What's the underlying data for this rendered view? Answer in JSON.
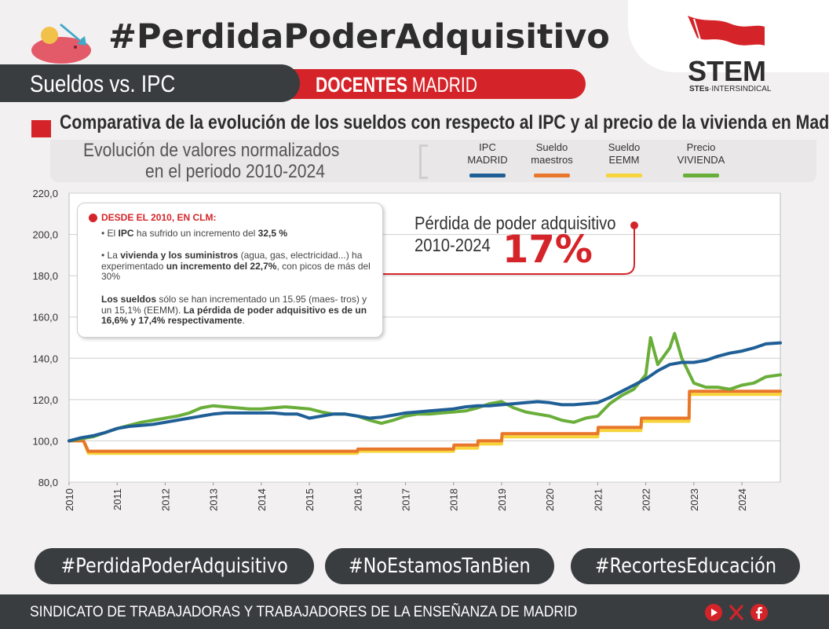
{
  "header": {
    "hashtag_title": "#PerdidaPoderAdquisitivo",
    "left_pill": "Sueldos vs. IPC",
    "right_pill_bold": "DOCENTES",
    "right_pill_light": "MADRID",
    "logo_text": "STEM",
    "logo_sub_bold": "STEs",
    "logo_sub_rest": "·INTERSINDICAL"
  },
  "subtitle": "Comparativa de la evolución de los sueldos con respecto al IPC y al precio de la vivienda en Madrid",
  "legend_panel": {
    "title_line1": "Evolución de valores normalizados",
    "title_line2": "en el periodo 2010-2024"
  },
  "annotation": {
    "heading": "DESDE EL 2010, EN CLM:",
    "p1_a": "• El ",
    "p1_b": "IPC",
    "p1_c": " ha sufrido un incremento del ",
    "p1_d": "32,5 %",
    "p2_a": "• La ",
    "p2_b": "vivienda y los suministros",
    "p2_c": " (agua, gas, electricidad...) ha experimentado ",
    "p2_d": "un incremento del 22,7%",
    "p2_e": ", con picos de más del 30%",
    "p3_a": "Los sueldos",
    "p3_b": " sólo se han incrementado un 15.95 (maes- tros) y un 15,1% (EEMM). ",
    "p3_c": "La pérdida de poder adquisitivo es de un 16,6% y 17,4% respectivamente",
    "p3_d": "."
  },
  "loss": {
    "label_line1": "Pérdida de poder adquisitivo",
    "label_line2": "2010-2024",
    "value": "17%"
  },
  "hashtags": [
    "#PerdidaPoderAdquisitivo",
    "#NoEstamosTanBien",
    "#RecortesEducación"
  ],
  "footer": {
    "text": "SINDICATO DE TRABAJADORAS Y TRABAJADORES DE LA ENSEÑANZA DE MADRID",
    "icons": [
      "youtube-icon",
      "x-icon",
      "facebook-icon"
    ]
  },
  "colors": {
    "brand_red": "#d52429",
    "dark": "#3a3d40",
    "ipc": "#1f5f96",
    "maestros": "#e8772c",
    "eemm": "#f6d43a",
    "vivienda": "#6aae3a"
  },
  "chart_data": {
    "type": "line",
    "ylim": [
      80,
      220
    ],
    "yticks": [
      "80,0",
      "100,0",
      "120,0",
      "140,0",
      "160,0",
      "180,0",
      "200,0",
      "220,0"
    ],
    "ytick_values": [
      80,
      100,
      120,
      140,
      160,
      180,
      200,
      220
    ],
    "xlim": [
      2010,
      2024.8
    ],
    "xticks": [
      "2010",
      "2011",
      "2012",
      "2013",
      "2014",
      "2015",
      "2016",
      "2017",
      "2018",
      "2019",
      "2020",
      "2021",
      "2022",
      "2023",
      "2024"
    ],
    "grid": true,
    "series": [
      {
        "name": "IPC MADRID",
        "legend_lines": [
          "IPC",
          "MADRID"
        ],
        "color": "#1f5f96",
        "x": [
          2010,
          2010.25,
          2010.5,
          2010.75,
          2011,
          2011.25,
          2011.5,
          2011.75,
          2012,
          2012.25,
          2012.5,
          2012.75,
          2013,
          2013.25,
          2013.5,
          2013.75,
          2014,
          2014.25,
          2014.5,
          2014.75,
          2015,
          2015.25,
          2015.5,
          2015.75,
          2016,
          2016.25,
          2016.5,
          2016.75,
          2017,
          2017.25,
          2017.5,
          2017.75,
          2018,
          2018.25,
          2018.5,
          2018.75,
          2019,
          2019.25,
          2019.5,
          2019.75,
          2020,
          2020.25,
          2020.5,
          2020.75,
          2021,
          2021.25,
          2021.5,
          2021.75,
          2022,
          2022.25,
          2022.5,
          2022.75,
          2023,
          2023.25,
          2023.5,
          2023.75,
          2024,
          2024.25,
          2024.5,
          2024.8
        ],
        "values": [
          100,
          101.5,
          102.5,
          104,
          106,
          107,
          107.5,
          108,
          109,
          110,
          111,
          112,
          113,
          113.5,
          113.5,
          113.5,
          113.5,
          113.5,
          113,
          113,
          111,
          112,
          113,
          113,
          112,
          111,
          111.5,
          112.5,
          113.5,
          114,
          114.5,
          115,
          115.5,
          116.5,
          117,
          117,
          117.5,
          118,
          118.5,
          119,
          118.5,
          117.5,
          117.5,
          118,
          118.5,
          121,
          124,
          127,
          130,
          134,
          137,
          138,
          138,
          139,
          141,
          142.5,
          143.5,
          145,
          147,
          147.5
        ]
      },
      {
        "name": "Sueldo maestros",
        "legend_lines": [
          "Sueldo",
          "maestros"
        ],
        "color": "#e8772c",
        "x": [
          2010,
          2010.3,
          2010.4,
          2016,
          2016.01,
          2018,
          2018.01,
          2018.5,
          2018.51,
          2019,
          2019.01,
          2021,
          2021.01,
          2021.9,
          2021.91,
          2022.9,
          2022.91,
          2024.8
        ],
        "values": [
          100,
          100,
          95,
          95,
          96,
          96,
          98,
          98,
          100,
          100,
          103.5,
          103.5,
          106.5,
          106.5,
          111,
          111,
          124,
          124
        ]
      },
      {
        "name": "Sueldo EEMM",
        "legend_lines": [
          "Sueldo",
          "EEMM"
        ],
        "color": "#f6d43a",
        "x": [
          2010,
          2010.3,
          2010.4,
          2016,
          2016.01,
          2018,
          2018.01,
          2018.5,
          2018.51,
          2019,
          2019.01,
          2021,
          2021.01,
          2021.9,
          2021.91,
          2022.9,
          2022.91,
          2024.8
        ],
        "values": [
          100,
          100,
          94,
          94,
          95,
          95,
          96.5,
          96.5,
          98.5,
          98.5,
          102,
          102,
          105,
          105,
          109.5,
          109.5,
          122.5,
          122.5
        ]
      },
      {
        "name": "Precio VIVIENDA",
        "legend_lines": [
          "Precio",
          "VIVIENDA"
        ],
        "color": "#6aae3a",
        "x": [
          2010,
          2010.25,
          2010.5,
          2010.75,
          2011,
          2011.25,
          2011.5,
          2011.75,
          2012,
          2012.25,
          2012.5,
          2012.75,
          2013,
          2013.25,
          2013.5,
          2013.75,
          2014,
          2014.25,
          2014.5,
          2014.75,
          2015,
          2015.25,
          2015.5,
          2015.75,
          2016,
          2016.25,
          2016.5,
          2016.75,
          2017,
          2017.25,
          2017.5,
          2017.75,
          2018,
          2018.25,
          2018.5,
          2018.75,
          2019,
          2019.25,
          2019.5,
          2019.75,
          2020,
          2020.25,
          2020.5,
          2020.75,
          2021,
          2021.25,
          2021.5,
          2021.75,
          2022,
          2022.1,
          2022.25,
          2022.5,
          2022.6,
          2022.75,
          2023,
          2023.25,
          2023.5,
          2023.75,
          2024,
          2024.25,
          2024.5,
          2024.8
        ],
        "values": [
          100,
          101,
          102,
          104,
          106,
          107.5,
          109,
          110,
          111,
          112,
          113.5,
          116,
          117,
          116.5,
          116,
          115.5,
          115.5,
          116,
          116.5,
          116,
          115.5,
          114,
          113,
          113,
          112,
          110,
          108.5,
          110,
          112,
          113,
          113,
          113.5,
          114,
          114.5,
          116,
          118,
          119,
          116,
          114,
          113,
          112,
          110,
          109,
          111,
          112,
          118,
          122,
          125,
          132,
          150,
          137,
          145,
          152,
          140,
          128,
          126,
          126,
          125,
          127,
          128,
          131,
          132
        ]
      }
    ]
  }
}
